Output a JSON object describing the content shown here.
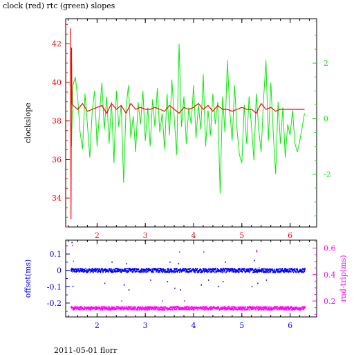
{
  "title": "clock (red) rtc (green) slopes",
  "footer": "2011-05-01 florr",
  "colors": {
    "clock": "#ff0000",
    "rtc": "#00ee00",
    "offset": "#0000ff",
    "rndtrip": "#ff00ff",
    "frame": "#000000"
  },
  "chart_data": [
    {
      "type": "line",
      "title": "clock (red) rtc (green) slopes",
      "xlabel": "",
      "ylabel": "clockslope",
      "y2label": "",
      "xlim": [
        1.35,
        6.55
      ],
      "ylim": [
        32.5,
        43.3
      ],
      "y2lim": [
        -3.9,
        3.6
      ],
      "x_ticks": [
        2,
        3,
        4,
        5,
        6
      ],
      "y_ticks": [
        34,
        36,
        38,
        40,
        42
      ],
      "y2_ticks": [
        -2,
        0,
        2
      ],
      "series": [
        {
          "name": "clock",
          "axis": "left",
          "color": "#ff0000",
          "x": [
            1.45,
            1.46,
            1.47,
            1.48,
            1.5,
            1.6,
            1.7,
            1.8,
            1.9,
            2.0,
            2.1,
            2.2,
            2.3,
            2.4,
            2.5,
            2.6,
            2.7,
            2.8,
            2.9,
            3.0,
            3.1,
            3.2,
            3.3,
            3.4,
            3.5,
            3.6,
            3.7,
            3.8,
            3.9,
            4.0,
            4.1,
            4.2,
            4.3,
            4.4,
            4.5,
            4.6,
            4.7,
            4.8,
            4.9,
            5.0,
            5.1,
            5.2,
            5.3,
            5.4,
            5.5,
            5.6,
            5.7,
            5.8,
            5.9,
            6.0,
            6.1,
            6.2,
            6.3
          ],
          "y": [
            42.8,
            32.9,
            41.8,
            38.9,
            38.8,
            38.6,
            38.9,
            38.5,
            38.6,
            38.7,
            38.8,
            38.4,
            38.9,
            38.6,
            38.8,
            38.4,
            38.9,
            38.6,
            38.7,
            38.6,
            38.6,
            38.7,
            38.6,
            38.5,
            38.8,
            38.6,
            38.4,
            38.7,
            38.6,
            38.7,
            38.9,
            38.6,
            38.8,
            38.5,
            38.8,
            38.6,
            38.6,
            38.5,
            38.6,
            38.7,
            38.6,
            38.6,
            38.4,
            38.9,
            38.6,
            38.7,
            38.5,
            38.6,
            38.6,
            38.6,
            38.6,
            38.6,
            38.6
          ]
        },
        {
          "name": "rtc",
          "axis": "right",
          "color": "#00ee00",
          "x": [
            1.45,
            1.47,
            1.5,
            1.55,
            1.6,
            1.65,
            1.7,
            1.75,
            1.8,
            1.85,
            1.9,
            1.95,
            2.0,
            2.05,
            2.1,
            2.15,
            2.2,
            2.25,
            2.3,
            2.35,
            2.4,
            2.45,
            2.5,
            2.55,
            2.6,
            2.65,
            2.7,
            2.75,
            2.8,
            2.85,
            2.9,
            2.95,
            3.0,
            3.05,
            3.1,
            3.15,
            3.2,
            3.25,
            3.3,
            3.35,
            3.4,
            3.45,
            3.5,
            3.55,
            3.6,
            3.65,
            3.7,
            3.75,
            3.8,
            3.85,
            3.9,
            3.95,
            4.0,
            4.05,
            4.1,
            4.15,
            4.2,
            4.25,
            4.3,
            4.35,
            4.4,
            4.45,
            4.5,
            4.55,
            4.6,
            4.65,
            4.7,
            4.75,
            4.8,
            4.85,
            4.9,
            4.95,
            5.0,
            5.05,
            5.1,
            5.15,
            5.2,
            5.25,
            5.3,
            5.35,
            5.4,
            5.45,
            5.5,
            5.55,
            5.6,
            5.65,
            5.7,
            5.75,
            5.8,
            5.85,
            5.9,
            5.95,
            6.0,
            6.05,
            6.1,
            6.15,
            6.2,
            6.25,
            6.3
          ],
          "y": [
            2.4,
            -1.0,
            1.2,
            1.5,
            0.7,
            -0.5,
            -1.1,
            0.9,
            -0.2,
            -1.4,
            0.3,
            1.0,
            -1.0,
            0.2,
            1.3,
            -0.4,
            0.8,
            -0.9,
            0.6,
            -1.6,
            1.0,
            -0.3,
            0.5,
            -2.3,
            0.4,
            1.2,
            -0.7,
            0.1,
            -1.2,
            0.6,
            -0.2,
            1.0,
            -0.8,
            0.4,
            -1.0,
            0.7,
            -0.3,
            1.1,
            -0.5,
            0.2,
            -1.1,
            0.9,
            -0.6,
            1.4,
            0.0,
            -1.3,
            2.7,
            -0.3,
            0.8,
            -0.9,
            0.4,
            -0.2,
            1.2,
            -0.7,
            0.5,
            -0.4,
            1.6,
            -1.0,
            0.3,
            -0.6,
            0.9,
            -0.2,
            0.6,
            -2.7,
            0.8,
            -0.5,
            2.1,
            0.3,
            -0.8,
            1.2,
            -0.4,
            -1.3,
            -1.6,
            0.5,
            -0.9,
            0.8,
            -0.3,
            -1.5,
            0.9,
            -0.4,
            -1.2,
            0.7,
            2.1,
            -0.8,
            1.3,
            -0.5,
            -2.0,
            0.6,
            -0.9,
            0.4,
            -1.4,
            -0.2,
            -0.6,
            0.3,
            -0.9,
            -1.2,
            -0.8,
            -0.3,
            0.2
          ]
        }
      ]
    },
    {
      "type": "scatter",
      "xlabel": "",
      "ylabel": "offset(ms)",
      "y2label": "rnd-trip(ms)",
      "xlim": [
        1.35,
        6.55
      ],
      "ylim": [
        -0.285,
        0.185
      ],
      "y2lim": [
        0.08,
        0.66
      ],
      "x_ticks": [
        2,
        3,
        4,
        5,
        6
      ],
      "y_ticks": [
        -0.2,
        -0.1,
        0,
        0.1
      ],
      "y2_ticks": [
        0.2,
        0.4,
        0.6
      ],
      "series": [
        {
          "name": "offset",
          "axis": "left",
          "color": "#0000ff",
          "x_range": [
            1.45,
            6.3
          ],
          "typical": 0.0,
          "spread": 0.012,
          "outliers": [
            [
              1.47,
              0.17
            ],
            [
              1.49,
              -0.1
            ],
            [
              2.15,
              -0.08
            ],
            [
              2.3,
              0.05
            ],
            [
              2.55,
              -0.09
            ],
            [
              2.6,
              0.04
            ],
            [
              2.65,
              -0.12
            ],
            [
              3.1,
              -0.06
            ],
            [
              3.45,
              -0.07
            ],
            [
              3.5,
              0.05
            ],
            [
              3.6,
              -0.11
            ],
            [
              3.68,
              0.04
            ],
            [
              3.72,
              -0.12
            ],
            [
              4.15,
              -0.09
            ],
            [
              4.3,
              -0.06
            ],
            [
              4.5,
              -0.1
            ],
            [
              4.6,
              -0.07
            ],
            [
              4.65,
              0.05
            ],
            [
              5.2,
              -0.1
            ],
            [
              5.25,
              0.06
            ],
            [
              5.3,
              0.12
            ],
            [
              5.32,
              -0.08
            ],
            [
              5.5,
              -0.06
            ]
          ]
        },
        {
          "name": "rnd-trip",
          "axis": "right",
          "color": "#ff00ff",
          "x_range": [
            1.45,
            6.3
          ],
          "typical": 0.146,
          "spread": 0.012,
          "outliers": [
            [
              1.48,
              0.62
            ],
            [
              1.5,
              0.5
            ],
            [
              2.5,
              0.2
            ],
            [
              3.35,
              0.2
            ],
            [
              3.7,
              0.57
            ],
            [
              3.8,
              0.2
            ],
            [
              4.2,
              0.57
            ],
            [
              5.3,
              0.57
            ],
            [
              5.35,
              0.45
            ]
          ]
        }
      ]
    }
  ]
}
